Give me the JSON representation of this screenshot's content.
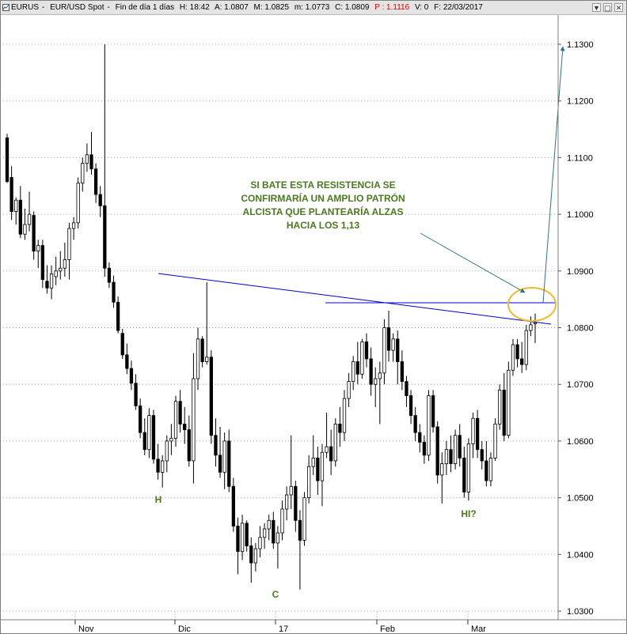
{
  "window": {
    "symbol": "EURUS",
    "instrument": "EUR/USD Spot",
    "period": "Fin de día 1 días",
    "H": "H: 18:42",
    "A": "A: 1.0807",
    "M": "M: 1.0825",
    "m": "m: 1.0773",
    "C": "C: 1.0809",
    "P": "P : 1.1116",
    "V": "V: 0",
    "F": "F: 22/03/2017",
    "buttons": [
      "▼",
      "▢",
      "✕"
    ]
  },
  "chart_data": {
    "type": "candlestick",
    "y_axis_labels": [
      "1.1300",
      "1.1200",
      "1.1100",
      "1.1000",
      "1.0900",
      "1.0800",
      "1.0700",
      "1.0600",
      "1.0500",
      "1.0400",
      "1.0300"
    ],
    "y_axis_side": "right",
    "x_axis_labels": [
      "Nov",
      "Dic",
      "17",
      "Feb",
      "Mar"
    ],
    "grid": "dotted horizontal",
    "colors": {
      "up": "#ffffff",
      "down": "#000000",
      "resistance": "#0000cc",
      "annotation": "#4b7a1e",
      "ellipse": "#f2b830",
      "arrow": "#2e7489"
    },
    "candles": [
      {
        "o": 1.1135,
        "h": 1.1142,
        "l": 1.1055,
        "c": 1.1058
      },
      {
        "o": 1.1065,
        "h": 1.1085,
        "l": 1.099,
        "c": 1.1005
      },
      {
        "o": 1.1005,
        "h": 1.103,
        "l": 1.0982,
        "c": 1.1025
      },
      {
        "o": 1.1025,
        "h": 1.105,
        "l": 1.0958,
        "c": 1.0965
      },
      {
        "o": 1.0965,
        "h": 1.101,
        "l": 1.0955,
        "c": 1.0982
      },
      {
        "o": 1.0982,
        "h": 1.104,
        "l": 1.097,
        "c": 1.1
      },
      {
        "o": 1.0998,
        "h": 1.1005,
        "l": 1.092,
        "c": 1.0935
      },
      {
        "o": 1.0935,
        "h": 1.0955,
        "l": 1.0905,
        "c": 1.0945
      },
      {
        "o": 1.0945,
        "h": 1.0955,
        "l": 1.087,
        "c": 1.0885
      },
      {
        "o": 1.0882,
        "h": 1.091,
        "l": 1.086,
        "c": 1.087
      },
      {
        "o": 1.087,
        "h": 1.091,
        "l": 1.085,
        "c": 1.0895
      },
      {
        "o": 1.089,
        "h": 1.0925,
        "l": 1.0875,
        "c": 1.09
      },
      {
        "o": 1.09,
        "h": 1.0935,
        "l": 1.0885,
        "c": 1.0905
      },
      {
        "o": 1.0905,
        "h": 1.095,
        "l": 1.089,
        "c": 1.092
      },
      {
        "o": 1.092,
        "h": 1.0985,
        "l": 1.0885,
        "c": 1.0975
      },
      {
        "o": 1.0975,
        "h": 1.0995,
        "l": 1.0955,
        "c": 1.0985
      },
      {
        "o": 1.0985,
        "h": 1.1065,
        "l": 1.0975,
        "c": 1.1055
      },
      {
        "o": 1.1055,
        "h": 1.11,
        "l": 1.104,
        "c": 1.109
      },
      {
        "o": 1.109,
        "h": 1.1125,
        "l": 1.1075,
        "c": 1.1105
      },
      {
        "o": 1.1105,
        "h": 1.1145,
        "l": 1.107,
        "c": 1.108
      },
      {
        "o": 1.108,
        "h": 1.109,
        "l": 1.102,
        "c": 1.1035
      },
      {
        "o": 1.1035,
        "h": 1.105,
        "l": 1.0995,
        "c": 1.1015
      },
      {
        "o": 1.1015,
        "h": 1.13,
        "l": 1.089,
        "c": 1.0905
      },
      {
        "o": 1.0905,
        "h": 1.0915,
        "l": 1.087,
        "c": 1.088
      },
      {
        "o": 1.088,
        "h": 1.0892,
        "l": 1.0835,
        "c": 1.0845
      },
      {
        "o": 1.0845,
        "h": 1.0855,
        "l": 1.079,
        "c": 1.0795
      },
      {
        "o": 1.079,
        "h": 1.0798,
        "l": 1.0745,
        "c": 1.0752
      },
      {
        "o": 1.0752,
        "h": 1.0772,
        "l": 1.0718,
        "c": 1.0728
      },
      {
        "o": 1.0728,
        "h": 1.0742,
        "l": 1.069,
        "c": 1.0702
      },
      {
        "o": 1.0702,
        "h": 1.0718,
        "l": 1.0655,
        "c": 1.0662
      },
      {
        "o": 1.0662,
        "h": 1.0675,
        "l": 1.0605,
        "c": 1.0615
      },
      {
        "o": 1.0615,
        "h": 1.064,
        "l": 1.0575,
        "c": 1.0585
      },
      {
        "o": 1.0585,
        "h": 1.0658,
        "l": 1.057,
        "c": 1.0645
      },
      {
        "o": 1.0645,
        "h": 1.0655,
        "l": 1.056,
        "c": 1.0568
      },
      {
        "o": 1.0568,
        "h": 1.0595,
        "l": 1.0532,
        "c": 1.0545
      },
      {
        "o": 1.0545,
        "h": 1.0575,
        "l": 1.0518,
        "c": 1.0565
      },
      {
        "o": 1.0565,
        "h": 1.061,
        "l": 1.0545,
        "c": 1.06
      },
      {
        "o": 1.06,
        "h": 1.063,
        "l": 1.0575,
        "c": 1.0605
      },
      {
        "o": 1.0605,
        "h": 1.068,
        "l": 1.059,
        "c": 1.067
      },
      {
        "o": 1.067,
        "h": 1.069,
        "l": 1.0615,
        "c": 1.063
      },
      {
        "o": 1.063,
        "h": 1.066,
        "l": 1.0595,
        "c": 1.062
      },
      {
        "o": 1.062,
        "h": 1.0645,
        "l": 1.0555,
        "c": 1.0565
      },
      {
        "o": 1.0565,
        "h": 1.0755,
        "l": 1.0525,
        "c": 1.071
      },
      {
        "o": 1.071,
        "h": 1.08,
        "l": 1.069,
        "c": 1.078
      },
      {
        "o": 1.078,
        "h": 1.0785,
        "l": 1.073,
        "c": 1.074
      },
      {
        "o": 1.074,
        "h": 1.088,
        "l": 1.0735,
        "c": 1.0748
      },
      {
        "o": 1.0748,
        "h": 1.076,
        "l": 1.0595,
        "c": 1.061
      },
      {
        "o": 1.061,
        "h": 1.064,
        "l": 1.0555,
        "c": 1.0575
      },
      {
        "o": 1.0575,
        "h": 1.0625,
        "l": 1.0535,
        "c": 1.0545
      },
      {
        "o": 1.0545,
        "h": 1.0615,
        "l": 1.0515,
        "c": 1.06
      },
      {
        "o": 1.06,
        "h": 1.062,
        "l": 1.051,
        "c": 1.052
      },
      {
        "o": 1.052,
        "h": 1.0535,
        "l": 1.044,
        "c": 1.045
      },
      {
        "o": 1.045,
        "h": 1.0465,
        "l": 1.0365,
        "c": 1.0405
      },
      {
        "o": 1.0405,
        "h": 1.047,
        "l": 1.039,
        "c": 1.0455
      },
      {
        "o": 1.0455,
        "h": 1.046,
        "l": 1.0405,
        "c": 1.0415
      },
      {
        "o": 1.0415,
        "h": 1.043,
        "l": 1.035,
        "c": 1.0385
      },
      {
        "o": 1.0385,
        "h": 1.042,
        "l": 1.037,
        "c": 1.041
      },
      {
        "o": 1.041,
        "h": 1.045,
        "l": 1.0395,
        "c": 1.043
      },
      {
        "o": 1.043,
        "h": 1.0455,
        "l": 1.041,
        "c": 1.0445
      },
      {
        "o": 1.0445,
        "h": 1.047,
        "l": 1.0425,
        "c": 1.046
      },
      {
        "o": 1.046,
        "h": 1.0475,
        "l": 1.041,
        "c": 1.042
      },
      {
        "o": 1.042,
        "h": 1.045,
        "l": 1.0375,
        "c": 1.0438
      },
      {
        "o": 1.0438,
        "h": 1.0495,
        "l": 1.0425,
        "c": 1.048
      },
      {
        "o": 1.048,
        "h": 1.052,
        "l": 1.046,
        "c": 1.0505
      },
      {
        "o": 1.0505,
        "h": 1.061,
        "l": 1.048,
        "c": 1.052
      },
      {
        "o": 1.052,
        "h": 1.053,
        "l": 1.044,
        "c": 1.046
      },
      {
        "o": 1.046,
        "h": 1.0478,
        "l": 1.0338,
        "c": 1.0425
      },
      {
        "o": 1.0425,
        "h": 1.051,
        "l": 1.0415,
        "c": 1.05
      },
      {
        "o": 1.05,
        "h": 1.0575,
        "l": 1.049,
        "c": 1.0555
      },
      {
        "o": 1.0555,
        "h": 1.061,
        "l": 1.054,
        "c": 1.057
      },
      {
        "o": 1.057,
        "h": 1.059,
        "l": 1.0505,
        "c": 1.053
      },
      {
        "o": 1.053,
        "h": 1.0595,
        "l": 1.0485,
        "c": 1.058
      },
      {
        "o": 1.058,
        "h": 1.065,
        "l": 1.057,
        "c": 1.059
      },
      {
        "o": 1.059,
        "h": 1.062,
        "l": 1.054,
        "c": 1.0565
      },
      {
        "o": 1.0565,
        "h": 1.064,
        "l": 1.0555,
        "c": 1.063
      },
      {
        "o": 1.063,
        "h": 1.066,
        "l": 1.059,
        "c": 1.0615
      },
      {
        "o": 1.0615,
        "h": 1.069,
        "l": 1.06,
        "c": 1.0675
      },
      {
        "o": 1.0675,
        "h": 1.072,
        "l": 1.066,
        "c": 1.0705
      },
      {
        "o": 1.0705,
        "h": 1.075,
        "l": 1.069,
        "c": 1.074
      },
      {
        "o": 1.074,
        "h": 1.0775,
        "l": 1.07,
        "c": 1.0718
      },
      {
        "o": 1.0718,
        "h": 1.078,
        "l": 1.071,
        "c": 1.0775
      },
      {
        "o": 1.0775,
        "h": 1.079,
        "l": 1.073,
        "c": 1.0745
      },
      {
        "o": 1.0745,
        "h": 1.0765,
        "l": 1.068,
        "c": 1.07
      },
      {
        "o": 1.07,
        "h": 1.073,
        "l": 1.066,
        "c": 1.071
      },
      {
        "o": 1.071,
        "h": 1.074,
        "l": 1.063,
        "c": 1.072
      },
      {
        "o": 1.072,
        "h": 1.0815,
        "l": 1.07,
        "c": 1.08
      },
      {
        "o": 1.08,
        "h": 1.083,
        "l": 1.074,
        "c": 1.076
      },
      {
        "o": 1.076,
        "h": 1.079,
        "l": 1.074,
        "c": 1.078
      },
      {
        "o": 1.078,
        "h": 1.0795,
        "l": 1.07,
        "c": 1.074
      },
      {
        "o": 1.074,
        "h": 1.076,
        "l": 1.069,
        "c": 1.0705
      },
      {
        "o": 1.0705,
        "h": 1.0715,
        "l": 1.066,
        "c": 1.068
      },
      {
        "o": 1.068,
        "h": 1.069,
        "l": 1.063,
        "c": 1.0645
      },
      {
        "o": 1.0645,
        "h": 1.066,
        "l": 1.06,
        "c": 1.0615
      },
      {
        "o": 1.0615,
        "h": 1.063,
        "l": 1.058,
        "c": 1.0598
      },
      {
        "o": 1.0598,
        "h": 1.061,
        "l": 1.056,
        "c": 1.0575
      },
      {
        "o": 1.0575,
        "h": 1.069,
        "l": 1.0565,
        "c": 1.068
      },
      {
        "o": 1.068,
        "h": 1.069,
        "l": 1.0615,
        "c": 1.0625
      },
      {
        "o": 1.0625,
        "h": 1.0635,
        "l": 1.0525,
        "c": 1.054
      },
      {
        "o": 1.054,
        "h": 1.058,
        "l": 1.049,
        "c": 1.056
      },
      {
        "o": 1.056,
        "h": 1.06,
        "l": 1.054,
        "c": 1.0585
      },
      {
        "o": 1.0585,
        "h": 1.061,
        "l": 1.0545,
        "c": 1.056
      },
      {
        "o": 1.056,
        "h": 1.062,
        "l": 1.055,
        "c": 1.061
      },
      {
        "o": 1.061,
        "h": 1.063,
        "l": 1.0555,
        "c": 1.057
      },
      {
        "o": 1.057,
        "h": 1.059,
        "l": 1.05,
        "c": 1.051
      },
      {
        "o": 1.051,
        "h": 1.0605,
        "l": 1.0495,
        "c": 1.0595
      },
      {
        "o": 1.0595,
        "h": 1.065,
        "l": 1.057,
        "c": 1.064
      },
      {
        "o": 1.064,
        "h": 1.0655,
        "l": 1.057,
        "c": 1.0585
      },
      {
        "o": 1.0585,
        "h": 1.06,
        "l": 1.055,
        "c": 1.0565
      },
      {
        "o": 1.0565,
        "h": 1.06,
        "l": 1.052,
        "c": 1.053
      },
      {
        "o": 1.053,
        "h": 1.058,
        "l": 1.052,
        "c": 1.057
      },
      {
        "o": 1.057,
        "h": 1.064,
        "l": 1.0565,
        "c": 1.063
      },
      {
        "o": 1.063,
        "h": 1.07,
        "l": 1.062,
        "c": 1.069
      },
      {
        "o": 1.069,
        "h": 1.072,
        "l": 1.06,
        "c": 1.061
      },
      {
        "o": 1.061,
        "h": 1.074,
        "l": 1.0605,
        "c": 1.0725
      },
      {
        "o": 1.0725,
        "h": 1.078,
        "l": 1.0715,
        "c": 1.077
      },
      {
        "o": 1.077,
        "h": 1.078,
        "l": 1.073,
        "c": 1.0745
      },
      {
        "o": 1.0745,
        "h": 1.0775,
        "l": 1.072,
        "c": 1.0735
      },
      {
        "o": 1.0735,
        "h": 1.0805,
        "l": 1.0725,
        "c": 1.0795
      },
      {
        "o": 1.0795,
        "h": 1.082,
        "l": 1.0785,
        "c": 1.0805
      },
      {
        "o": 1.0807,
        "h": 1.0825,
        "l": 1.0773,
        "c": 1.0809
      }
    ],
    "annotations": {
      "H": "H",
      "C": "C",
      "HI": "HI?",
      "note": [
        "SI BATE ESTA RESISTENCIA SE",
        "CONFIRMARÍA UN AMPLIO PATRÓN",
        "ALCISTA QUE PLANTEARÍA ALZAS",
        "HACIA LOS 1,13"
      ]
    }
  }
}
